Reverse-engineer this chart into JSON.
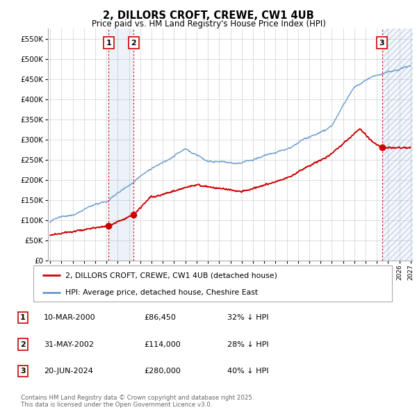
{
  "title": "2, DILLORS CROFT, CREWE, CW1 4UB",
  "subtitle": "Price paid vs. HM Land Registry's House Price Index (HPI)",
  "sale_prices": [
    86450,
    114000,
    280000
  ],
  "sale_labels": [
    "1",
    "2",
    "3"
  ],
  "sale_years": [
    2000.19,
    2002.42,
    2024.46
  ],
  "ylim": [
    0,
    575000
  ],
  "yticks": [
    0,
    50000,
    100000,
    150000,
    200000,
    250000,
    300000,
    350000,
    400000,
    450000,
    500000,
    550000
  ],
  "xlim_start": 1994.8,
  "xlim_end": 2027.2,
  "xticks": [
    1995,
    1996,
    1997,
    1998,
    1999,
    2000,
    2001,
    2002,
    2003,
    2004,
    2005,
    2006,
    2007,
    2008,
    2009,
    2010,
    2011,
    2012,
    2013,
    2014,
    2015,
    2016,
    2017,
    2018,
    2019,
    2020,
    2021,
    2022,
    2023,
    2024,
    2025,
    2026,
    2027
  ],
  "red_color": "#cc0000",
  "blue_color": "#6699cc",
  "bg_color": "#ffffff",
  "grid_color": "#cccccc",
  "legend_label_red": "2, DILLORS CROFT, CREWE, CW1 4UB (detached house)",
  "legend_label_blue": "HPI: Average price, detached house, Cheshire East",
  "table_rows": [
    [
      "1",
      "10-MAR-2000",
      "£86,450",
      "32% ↓ HPI"
    ],
    [
      "2",
      "31-MAY-2002",
      "£114,000",
      "28% ↓ HPI"
    ],
    [
      "3",
      "20-JUN-2024",
      "£280,000",
      "40% ↓ HPI"
    ]
  ],
  "footnote": "Contains HM Land Registry data © Crown copyright and database right 2025.\nThis data is licensed under the Open Government Licence v3.0."
}
